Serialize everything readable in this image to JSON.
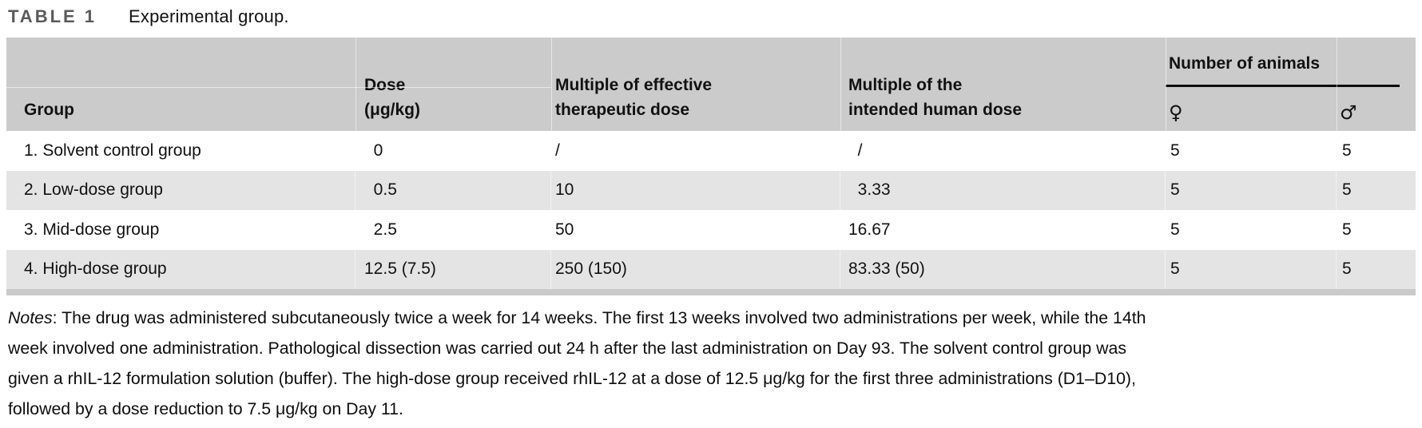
{
  "page": {
    "title_label": "TABLE 1",
    "title_caption": "Experimental group."
  },
  "table": {
    "headers": {
      "group": "Group",
      "dose": {
        "line1": "Dose",
        "line2": "(μg/kg)"
      },
      "effective": {
        "line1": "Multiple of effective",
        "line2": "therapeutic dose"
      },
      "human": {
        "line1": "Multiple of the",
        "line2": "intended human dose"
      },
      "animals": {
        "group_label": "Number of animals",
        "female": "♀",
        "male": "♂"
      }
    },
    "rows": [
      {
        "cells": [
          "1. Solvent control group",
          " 0",
          "/",
          " /",
          "5",
          "5"
        ]
      },
      {
        "cells": [
          "2. Low-dose group",
          " 0.5",
          "10",
          " 3.33",
          "5",
          "5"
        ]
      },
      {
        "cells": [
          "3. Mid-dose group",
          " 2.5",
          "50",
          "16.67",
          "5",
          "5"
        ]
      },
      {
        "cells": [
          "4. High-dose group",
          "12.5 (7.5)",
          "250 (150)",
          "83.33 (50)",
          "5",
          "5"
        ]
      }
    ]
  },
  "notes": {
    "label": "Notes",
    "line1_rest": ": The drug was administered subcutaneously twice a week for 14 weeks. The first 13 weeks involved two administrations per week, while the 14th",
    "line2": "week involved one administration. Pathological dissection was carried out 24 h after the last administration on Day 93. The solvent control group was",
    "line3": "given a rhIL-12 formulation solution (buffer). The high-dose group received rhIL-12 at a dose of 12.5 μg/kg for the first three administrations (D1–D10),",
    "line4": "followed by a dose reduction to 7.5 μg/kg on Day 11."
  },
  "colors": {
    "header_bg": "#cbcbcb",
    "row_alt_bg": "#e4e4e4",
    "table_bottom_strip": "#cacaca",
    "title_label_color": "#5a5a5a",
    "rule_color": "#0b0b0b"
  }
}
